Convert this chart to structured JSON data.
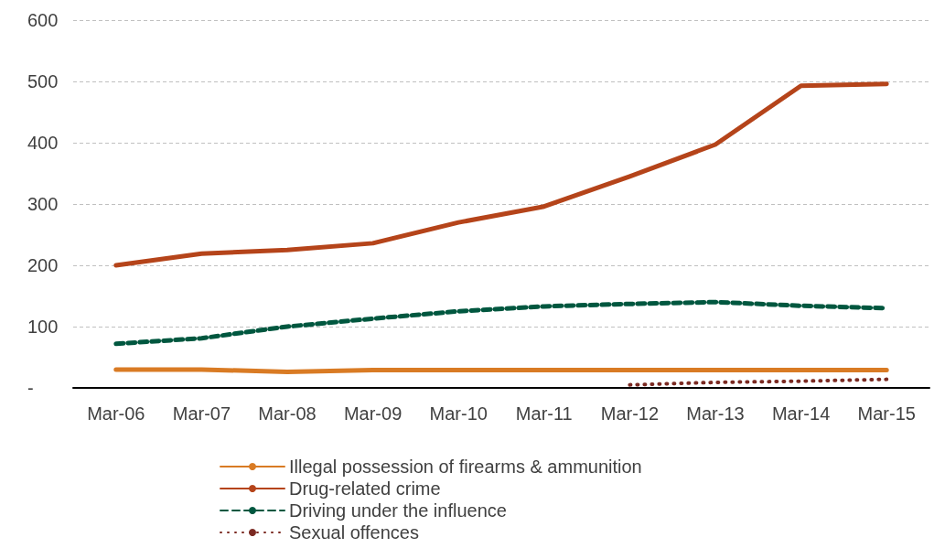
{
  "chart_data": {
    "type": "line",
    "categories": [
      "Mar-06",
      "Mar-07",
      "Mar-08",
      "Mar-09",
      "Mar-10",
      "Mar-11",
      "Mar-12",
      "Mar-13",
      "Mar-14",
      "Mar-15"
    ],
    "series": [
      {
        "name": "Illegal possession of firearms & ammunition",
        "color": "#d97b24",
        "line_style": "solid",
        "values": [
          30,
          30,
          26,
          29,
          29,
          29,
          29,
          29,
          29,
          29
        ]
      },
      {
        "name": "Drug-related crime",
        "color": "#b5441a",
        "line_style": "solid",
        "values": [
          200,
          219,
          225,
          236,
          270,
          296,
          345,
          397,
          493,
          496
        ]
      },
      {
        "name": "Driving under the influence",
        "color": "#00573f",
        "line_style": "dashed",
        "values": [
          72,
          81,
          100,
          113,
          125,
          133,
          137,
          140,
          134,
          130
        ]
      },
      {
        "name": "Sexual offences",
        "color": "#7b2a22",
        "line_style": "dotted",
        "values": [
          null,
          null,
          null,
          null,
          null,
          null,
          5,
          9,
          11,
          14
        ]
      }
    ],
    "ylim": [
      0,
      600
    ],
    "yticks": [
      {
        "value": 0,
        "label": "-"
      },
      100,
      200,
      300,
      400,
      500,
      600
    ],
    "grid": "y",
    "legend": "bottom",
    "marker": "none"
  }
}
